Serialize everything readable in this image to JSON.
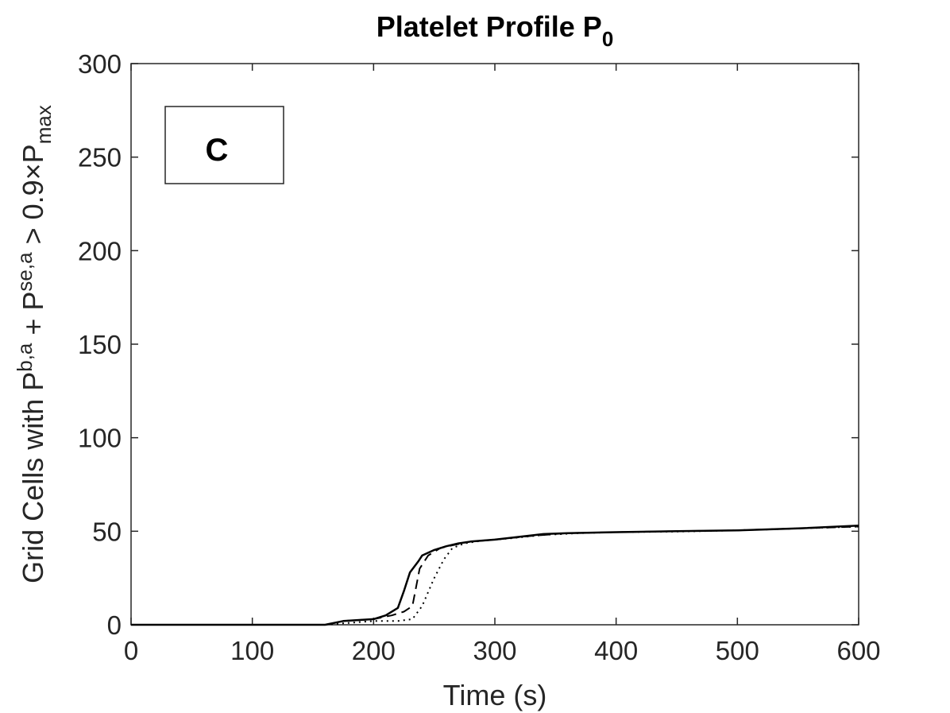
{
  "chart_data": {
    "type": "line",
    "title": "Platelet Profile P",
    "title_sub": "0",
    "xlabel": "Time (s)",
    "ylabel": {
      "part1": "Grid Cells with P",
      "sup1": "b,a",
      "part2": " + P",
      "sup2": "se,a",
      "part3": " > 0.9",
      "times": "×",
      "part4": "P",
      "sub4": "max"
    },
    "xlim": [
      0,
      600
    ],
    "ylim": [
      0,
      300
    ],
    "x_ticks": [
      "0",
      "100",
      "200",
      "300",
      "400",
      "500",
      "600"
    ],
    "y_ticks": [
      "0",
      "50",
      "100",
      "150",
      "200",
      "250",
      "300"
    ],
    "grid": false,
    "annotation": "C",
    "series": [
      {
        "style": "solid",
        "points": [
          [
            0,
            0
          ],
          [
            160,
            0
          ],
          [
            175,
            2
          ],
          [
            200,
            3
          ],
          [
            210,
            5
          ],
          [
            220,
            9
          ],
          [
            225,
            18
          ],
          [
            230,
            28
          ],
          [
            237,
            34
          ],
          [
            240,
            37
          ],
          [
            250,
            40
          ],
          [
            260,
            42
          ],
          [
            270,
            43.5
          ],
          [
            280,
            44.5
          ],
          [
            300,
            45.5
          ],
          [
            320,
            47
          ],
          [
            340,
            48.5
          ],
          [
            360,
            49
          ],
          [
            400,
            49.5
          ],
          [
            450,
            50
          ],
          [
            500,
            50.5
          ],
          [
            550,
            51.5
          ],
          [
            600,
            53
          ]
        ]
      },
      {
        "style": "dashed",
        "points": [
          [
            0,
            0
          ],
          [
            160,
            0
          ],
          [
            175,
            2
          ],
          [
            200,
            3
          ],
          [
            215,
            5
          ],
          [
            225,
            7
          ],
          [
            232,
            10
          ],
          [
            238,
            30
          ],
          [
            245,
            37
          ],
          [
            255,
            41
          ],
          [
            265,
            42.5
          ],
          [
            280,
            44.5
          ],
          [
            300,
            45.5
          ],
          [
            330,
            47.5
          ],
          [
            360,
            49
          ],
          [
            400,
            49.5
          ],
          [
            450,
            50
          ],
          [
            500,
            50.5
          ],
          [
            550,
            51.5
          ],
          [
            600,
            52.5
          ]
        ]
      },
      {
        "style": "dotted",
        "points": [
          [
            0,
            0
          ],
          [
            160,
            0
          ],
          [
            180,
            1
          ],
          [
            200,
            2
          ],
          [
            220,
            2
          ],
          [
            232,
            3
          ],
          [
            240,
            10
          ],
          [
            250,
            25
          ],
          [
            258,
            35
          ],
          [
            265,
            41
          ],
          [
            275,
            43.5
          ],
          [
            290,
            45
          ],
          [
            310,
            46
          ],
          [
            340,
            48
          ],
          [
            370,
            49
          ],
          [
            400,
            49.5
          ],
          [
            450,
            49.8
          ],
          [
            500,
            50.5
          ],
          [
            550,
            51.5
          ],
          [
            600,
            52.5
          ]
        ]
      }
    ]
  }
}
